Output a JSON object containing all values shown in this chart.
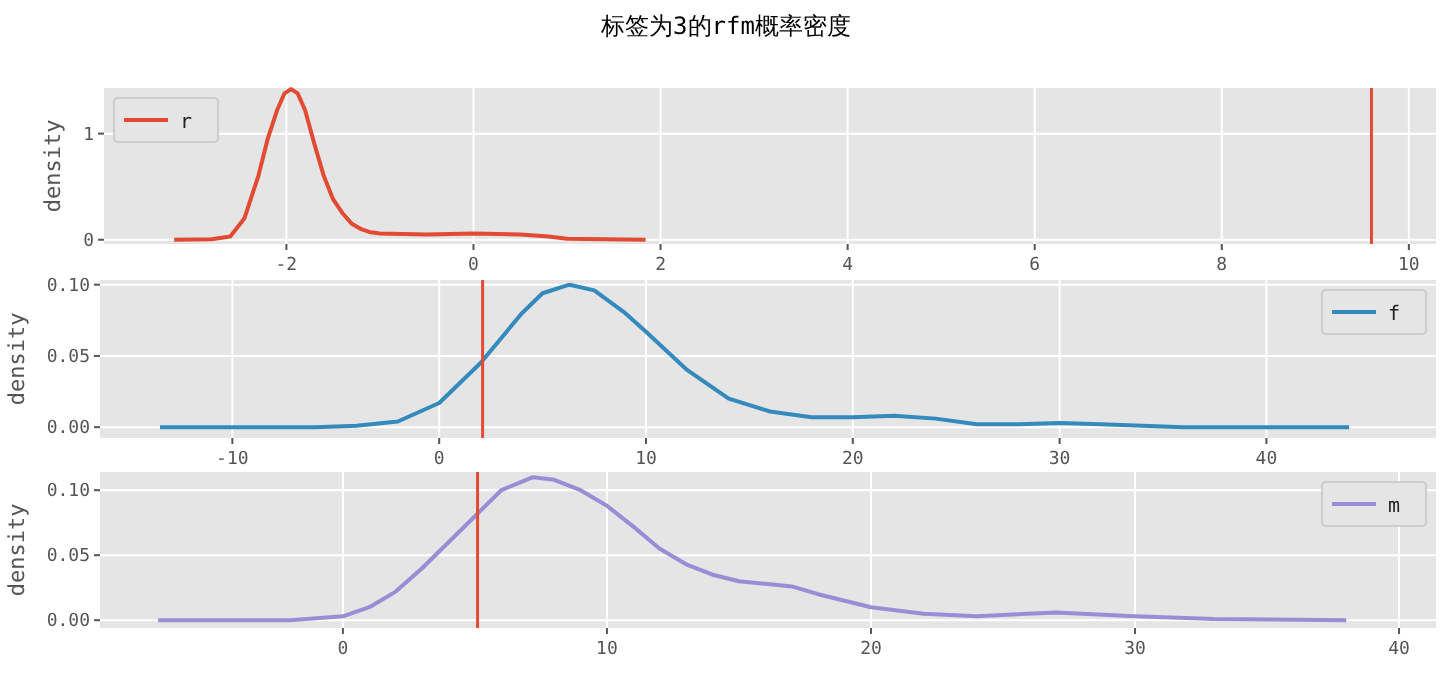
{
  "chart_data": [
    {
      "type": "line",
      "title": "标签为3的rfm概率密度",
      "ylabel": "density",
      "xlim": [
        -3.95,
        10.29
      ],
      "ylim": [
        -0.04,
        1.43
      ],
      "xticks": [
        -2,
        0,
        2,
        4,
        6,
        8,
        10
      ],
      "yticks": [
        0,
        1
      ],
      "grid": true,
      "legend": "top left",
      "series": [
        {
          "name": "r",
          "color": "#e24a33",
          "x": [
            -3.2,
            -2.8,
            -2.6,
            -2.45,
            -2.3,
            -2.2,
            -2.1,
            -2.02,
            -1.95,
            -1.88,
            -1.8,
            -1.7,
            -1.6,
            -1.5,
            -1.4,
            -1.3,
            -1.2,
            -1.1,
            -1.0,
            -0.5,
            0,
            0.5,
            0.8,
            1.0,
            1.4,
            1.84
          ],
          "values": [
            0,
            0.005,
            0.03,
            0.2,
            0.6,
            0.95,
            1.22,
            1.38,
            1.42,
            1.38,
            1.22,
            0.9,
            0.6,
            0.38,
            0.25,
            0.15,
            0.1,
            0.07,
            0.06,
            0.05,
            0.06,
            0.05,
            0.03,
            0.01,
            0.005,
            0
          ]
        }
      ],
      "ref_lines": [
        {
          "axis": "x",
          "value": 9.6,
          "color": "#e24a33"
        }
      ]
    },
    {
      "type": "line",
      "ylabel": "density",
      "xlim": [
        -16.4,
        48.2
      ],
      "ylim": [
        -0.0076,
        0.1033
      ],
      "xticks": [
        -10,
        0,
        10,
        20,
        30,
        40
      ],
      "yticks": [
        {
          "value": 0,
          "label": "0.00"
        },
        {
          "value": 0.05,
          "label": "0.05"
        },
        {
          "value": 0.1,
          "label": "0.10"
        }
      ],
      "grid": true,
      "legend": "top right",
      "series": [
        {
          "name": "f",
          "color": "#348abd",
          "x": [
            -13.5,
            -6,
            -4,
            -2,
            0,
            2,
            4,
            5,
            6.3,
            7.5,
            9,
            10,
            12,
            14,
            16,
            18,
            20,
            22,
            24,
            26,
            28,
            30,
            32,
            34,
            36,
            40,
            44
          ],
          "values": [
            0,
            0,
            0.001,
            0.004,
            0.017,
            0.045,
            0.08,
            0.094,
            0.1,
            0.096,
            0.08,
            0.067,
            0.04,
            0.02,
            0.011,
            0.007,
            0.007,
            0.008,
            0.006,
            0.002,
            0.002,
            0.003,
            0.002,
            0.001,
            0,
            0,
            0
          ]
        }
      ],
      "ref_lines": [
        {
          "axis": "x",
          "value": 2.1,
          "color": "#e24a33"
        }
      ]
    },
    {
      "type": "line",
      "ylabel": "density",
      "xlim": [
        -9.2,
        41.4
      ],
      "ylim": [
        -0.006,
        0.114
      ],
      "xticks": [
        0,
        10,
        20,
        30,
        40
      ],
      "yticks": [
        {
          "value": 0,
          "label": "0.00"
        },
        {
          "value": 0.05,
          "label": "0.05"
        },
        {
          "value": 0.1,
          "label": "0.10"
        }
      ],
      "grid": true,
      "legend": "top right",
      "series": [
        {
          "name": "m",
          "color": "#988ed5",
          "x": [
            -7,
            -2,
            0,
            1,
            2,
            3,
            4,
            5,
            6,
            7.2,
            8,
            9,
            10,
            11,
            12,
            13,
            14,
            15,
            16,
            17,
            18,
            20,
            22,
            24,
            27,
            30,
            33,
            38
          ],
          "values": [
            0,
            0,
            0.003,
            0.01,
            0.022,
            0.04,
            0.06,
            0.08,
            0.1,
            0.11,
            0.108,
            0.1,
            0.088,
            0.072,
            0.055,
            0.043,
            0.035,
            0.03,
            0.028,
            0.026,
            0.02,
            0.01,
            0.005,
            0.003,
            0.006,
            0.003,
            0.001,
            0
          ]
        }
      ],
      "ref_lines": [
        {
          "axis": "x",
          "value": 5.1,
          "color": "#e24a33"
        }
      ]
    }
  ]
}
